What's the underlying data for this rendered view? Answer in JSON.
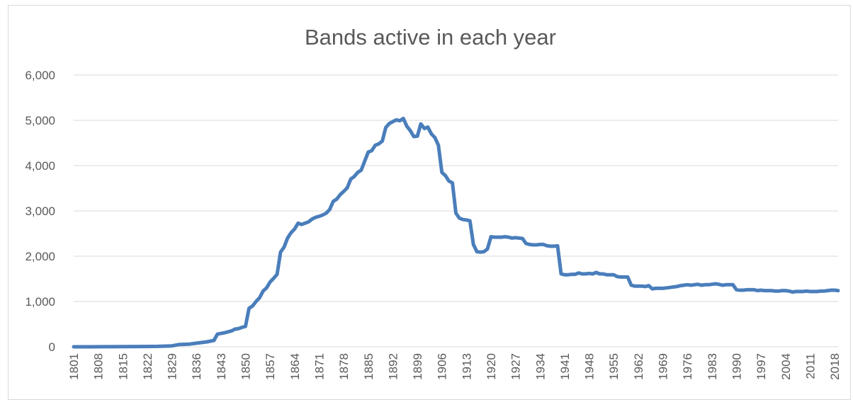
{
  "chart_data": {
    "type": "line",
    "title": "Bands active in each year",
    "xlabel": "",
    "ylabel": "",
    "ylim": [
      0,
      6000
    ],
    "y_ticks": [
      "0",
      "1,000",
      "2,000",
      "3,000",
      "4,000",
      "5,000",
      "6,000"
    ],
    "x_tick_labels": [
      "1801",
      "1808",
      "1815",
      "1822",
      "1829",
      "1836",
      "1843",
      "1850",
      "1857",
      "1864",
      "1871",
      "1878",
      "1885",
      "1892",
      "1899",
      "1906",
      "1913",
      "1920",
      "1927",
      "1934",
      "1941",
      "1948",
      "1955",
      "1962",
      "1969",
      "1976",
      "1983",
      "1990",
      "1997",
      "2004",
      "2011",
      "2018"
    ],
    "grid": true,
    "legend": "none",
    "colors": {
      "line": "#4a7ebb",
      "grid": "#d9d9d9",
      "text": "#595959"
    },
    "series": [
      {
        "points": [
          [
            1801,
            0
          ],
          [
            1805,
            0
          ],
          [
            1810,
            2
          ],
          [
            1815,
            3
          ],
          [
            1820,
            6
          ],
          [
            1825,
            10
          ],
          [
            1829,
            20
          ],
          [
            1831,
            50
          ],
          [
            1834,
            60
          ],
          [
            1836,
            80
          ],
          [
            1839,
            110
          ],
          [
            1841,
            140
          ],
          [
            1842,
            280
          ],
          [
            1844,
            310
          ],
          [
            1846,
            350
          ],
          [
            1847,
            390
          ],
          [
            1848,
            400
          ],
          [
            1849,
            430
          ],
          [
            1850,
            450
          ],
          [
            1851,
            850
          ],
          [
            1852,
            900
          ],
          [
            1853,
            1000
          ],
          [
            1854,
            1080
          ],
          [
            1855,
            1230
          ],
          [
            1856,
            1300
          ],
          [
            1857,
            1430
          ],
          [
            1858,
            1510
          ],
          [
            1859,
            1600
          ],
          [
            1860,
            2090
          ],
          [
            1861,
            2200
          ],
          [
            1862,
            2400
          ],
          [
            1863,
            2520
          ],
          [
            1864,
            2600
          ],
          [
            1865,
            2730
          ],
          [
            1866,
            2700
          ],
          [
            1867,
            2730
          ],
          [
            1868,
            2760
          ],
          [
            1869,
            2820
          ],
          [
            1870,
            2860
          ],
          [
            1871,
            2880
          ],
          [
            1872,
            2910
          ],
          [
            1873,
            2950
          ],
          [
            1874,
            3030
          ],
          [
            1875,
            3210
          ],
          [
            1876,
            3260
          ],
          [
            1877,
            3360
          ],
          [
            1878,
            3430
          ],
          [
            1879,
            3510
          ],
          [
            1880,
            3700
          ],
          [
            1881,
            3760
          ],
          [
            1882,
            3850
          ],
          [
            1883,
            3900
          ],
          [
            1884,
            4100
          ],
          [
            1885,
            4300
          ],
          [
            1886,
            4330
          ],
          [
            1887,
            4450
          ],
          [
            1888,
            4480
          ],
          [
            1889,
            4540
          ],
          [
            1890,
            4840
          ],
          [
            1891,
            4930
          ],
          [
            1892,
            4970
          ],
          [
            1893,
            5010
          ],
          [
            1894,
            4990
          ],
          [
            1895,
            5040
          ],
          [
            1896,
            4870
          ],
          [
            1897,
            4770
          ],
          [
            1898,
            4640
          ],
          [
            1899,
            4650
          ],
          [
            1900,
            4920
          ],
          [
            1901,
            4820
          ],
          [
            1902,
            4850
          ],
          [
            1903,
            4700
          ],
          [
            1904,
            4620
          ],
          [
            1905,
            4450
          ],
          [
            1906,
            3850
          ],
          [
            1907,
            3780
          ],
          [
            1908,
            3660
          ],
          [
            1909,
            3620
          ],
          [
            1910,
            2950
          ],
          [
            1911,
            2840
          ],
          [
            1912,
            2810
          ],
          [
            1913,
            2800
          ],
          [
            1914,
            2780
          ],
          [
            1915,
            2260
          ],
          [
            1916,
            2100
          ],
          [
            1917,
            2090
          ],
          [
            1918,
            2100
          ],
          [
            1919,
            2160
          ],
          [
            1920,
            2430
          ],
          [
            1921,
            2420
          ],
          [
            1922,
            2420
          ],
          [
            1923,
            2420
          ],
          [
            1924,
            2430
          ],
          [
            1925,
            2420
          ],
          [
            1926,
            2400
          ],
          [
            1927,
            2410
          ],
          [
            1928,
            2400
          ],
          [
            1929,
            2390
          ],
          [
            1930,
            2280
          ],
          [
            1931,
            2260
          ],
          [
            1932,
            2250
          ],
          [
            1933,
            2250
          ],
          [
            1934,
            2260
          ],
          [
            1935,
            2260
          ],
          [
            1936,
            2230
          ],
          [
            1937,
            2220
          ],
          [
            1938,
            2220
          ],
          [
            1939,
            2230
          ],
          [
            1940,
            1610
          ],
          [
            1941,
            1590
          ],
          [
            1942,
            1590
          ],
          [
            1943,
            1600
          ],
          [
            1944,
            1600
          ],
          [
            1945,
            1630
          ],
          [
            1946,
            1610
          ],
          [
            1947,
            1610
          ],
          [
            1948,
            1620
          ],
          [
            1949,
            1610
          ],
          [
            1950,
            1640
          ],
          [
            1951,
            1610
          ],
          [
            1952,
            1610
          ],
          [
            1953,
            1590
          ],
          [
            1954,
            1590
          ],
          [
            1955,
            1590
          ],
          [
            1956,
            1550
          ],
          [
            1957,
            1540
          ],
          [
            1958,
            1540
          ],
          [
            1959,
            1540
          ],
          [
            1960,
            1360
          ],
          [
            1961,
            1340
          ],
          [
            1962,
            1340
          ],
          [
            1963,
            1340
          ],
          [
            1964,
            1330
          ],
          [
            1965,
            1350
          ],
          [
            1966,
            1280
          ],
          [
            1967,
            1290
          ],
          [
            1968,
            1290
          ],
          [
            1969,
            1290
          ],
          [
            1970,
            1300
          ],
          [
            1971,
            1310
          ],
          [
            1972,
            1320
          ],
          [
            1973,
            1330
          ],
          [
            1974,
            1350
          ],
          [
            1975,
            1360
          ],
          [
            1976,
            1370
          ],
          [
            1977,
            1360
          ],
          [
            1978,
            1370
          ],
          [
            1979,
            1380
          ],
          [
            1980,
            1360
          ],
          [
            1981,
            1370
          ],
          [
            1982,
            1370
          ],
          [
            1983,
            1380
          ],
          [
            1984,
            1390
          ],
          [
            1985,
            1380
          ],
          [
            1986,
            1360
          ],
          [
            1987,
            1370
          ],
          [
            1988,
            1370
          ],
          [
            1989,
            1370
          ],
          [
            1990,
            1260
          ],
          [
            1991,
            1250
          ],
          [
            1992,
            1250
          ],
          [
            1993,
            1260
          ],
          [
            1994,
            1260
          ],
          [
            1995,
            1260
          ],
          [
            1996,
            1240
          ],
          [
            1997,
            1250
          ],
          [
            1998,
            1240
          ],
          [
            1999,
            1240
          ],
          [
            2000,
            1240
          ],
          [
            2001,
            1230
          ],
          [
            2002,
            1230
          ],
          [
            2003,
            1240
          ],
          [
            2004,
            1240
          ],
          [
            2005,
            1230
          ],
          [
            2006,
            1210
          ],
          [
            2007,
            1220
          ],
          [
            2008,
            1220
          ],
          [
            2009,
            1220
          ],
          [
            2010,
            1230
          ],
          [
            2011,
            1220
          ],
          [
            2012,
            1220
          ],
          [
            2013,
            1220
          ],
          [
            2014,
            1230
          ],
          [
            2015,
            1230
          ],
          [
            2016,
            1240
          ],
          [
            2017,
            1250
          ],
          [
            2018,
            1250
          ],
          [
            2019,
            1240
          ]
        ]
      }
    ]
  }
}
